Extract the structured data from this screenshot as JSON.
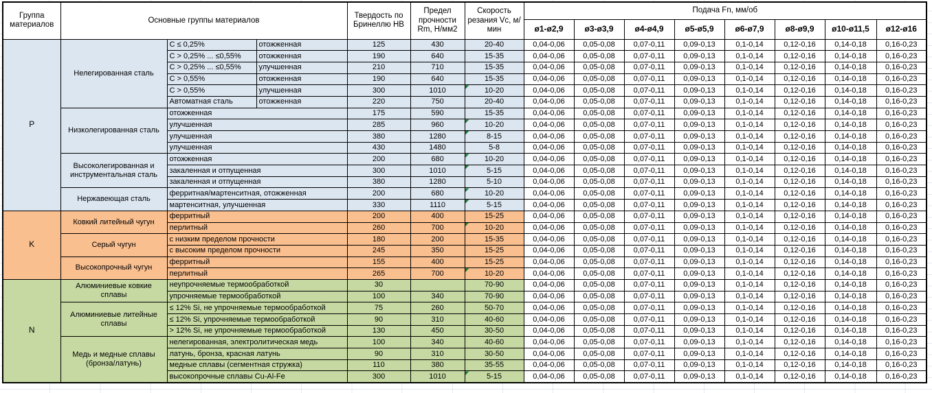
{
  "colors": {
    "steel_blue": "#DCE6F1",
    "cast_iron_orange": "#FABF8F",
    "nonferrous_green": "#C6D9A2",
    "border_black": "#000000",
    "flag_green": "#1E7B34",
    "header_white": "#FFFFFF"
  },
  "header": {
    "col_group": "Группа материалов",
    "col_main": "Основные группы материалов",
    "col_hb": "Твердость по Бринеллю HB",
    "col_rm": "Предел прочности Rm, Н/мм2",
    "col_vc": "Скорость резания Vc, м/мин",
    "col_feed": "Подача Fn, мм/об",
    "diameters": [
      "ø1-ø2,9",
      "ø3-ø3,9",
      "ø4-ø4,9",
      "ø5-ø5,9",
      "ø6-ø7,9",
      "ø8-ø9,9",
      "ø10-ø11,5",
      "ø12-ø16"
    ]
  },
  "feed_values": [
    "0,04-0,06",
    "0,05-0,08",
    "0,07-0,11",
    "0,09-0,13",
    "0,1-0,14",
    "0,12-0,16",
    "0,14-0,18",
    "0,16-0,23"
  ],
  "groups": [
    {
      "code": "P",
      "color": "#DCE6F1",
      "families": [
        {
          "name": "Нелегированная сталь",
          "rows": [
            {
              "desc1": "C ≤ 0,25%",
              "desc2": "отожженная",
              "hb": "125",
              "rm": "430",
              "vc": "20-40",
              "flag": false
            },
            {
              "desc1": "C > 0,25% ... ≤0,55%",
              "desc2": "отожженная",
              "hb": "190",
              "rm": "640",
              "vc": "15-35",
              "flag": false
            },
            {
              "desc1": "C > 0,25% ... ≤0,55%",
              "desc2": "улучшенная",
              "hb": "210",
              "rm": "710",
              "vc": "15-35",
              "flag": false
            },
            {
              "desc1": "C > 0,55%",
              "desc2": "отожженная",
              "hb": "190",
              "rm": "640",
              "vc": "15-35",
              "flag": false
            },
            {
              "desc1": "C > 0,55%",
              "desc2": "улучшенная",
              "hb": "300",
              "rm": "1010",
              "vc": "10-20",
              "flag": true
            },
            {
              "desc1": "Автоматная сталь",
              "desc2": "отожженная",
              "hb": "220",
              "rm": "750",
              "vc": "20-40",
              "flag": false
            }
          ]
        },
        {
          "name": "Низколегированная сталь",
          "rows": [
            {
              "desc1": "отожженная",
              "desc2": null,
              "hb": "175",
              "rm": "590",
              "vc": "15-35",
              "flag": false
            },
            {
              "desc1": "улучшенная",
              "desc2": null,
              "hb": "285",
              "rm": "960",
              "vc": "10-20",
              "flag": true
            },
            {
              "desc1": "улучшенная",
              "desc2": null,
              "hb": "380",
              "rm": "1280",
              "vc": "8-15",
              "flag": true
            },
            {
              "desc1": "улучшенная",
              "desc2": null,
              "hb": "430",
              "rm": "1480",
              "vc": "5-8",
              "flag": false
            }
          ]
        },
        {
          "name": "Высоколегированная и инструментальная сталь",
          "rows": [
            {
              "desc1": "отожженная",
              "desc2": null,
              "hb": "200",
              "rm": "680",
              "vc": "10-20",
              "flag": true
            },
            {
              "desc1": "закаленная и отпущенная",
              "desc2": null,
              "hb": "300",
              "rm": "1010",
              "vc": "5-15",
              "flag": true
            },
            {
              "desc1": "закаленная и отпущенная",
              "desc2": null,
              "hb": "380",
              "rm": "1280",
              "vc": "5-10",
              "flag": false
            }
          ]
        },
        {
          "name": "Нержавеющая сталь",
          "rows": [
            {
              "desc1": "ферритная/мартенситная, отожженная",
              "desc2": null,
              "hb": "200",
              "rm": "680",
              "vc": "10-20",
              "flag": true
            },
            {
              "desc1": "мартенситная, улучшенная",
              "desc2": null,
              "hb": "330",
              "rm": "1110",
              "vc": "5-15",
              "flag": true
            }
          ]
        }
      ]
    },
    {
      "code": "K",
      "color": "#FABF8F",
      "families": [
        {
          "name": "Ковкий литейный чугун",
          "rows": [
            {
              "desc1": "ферритный",
              "desc2": null,
              "hb": "200",
              "rm": "400",
              "vc": "15-25",
              "flag": false
            },
            {
              "desc1": "перлитный",
              "desc2": null,
              "hb": "260",
              "rm": "700",
              "vc": "10-20",
              "flag": true
            }
          ]
        },
        {
          "name": "Серый чугун",
          "rows": [
            {
              "desc1": "с низким пределом прочности",
              "desc2": null,
              "hb": "180",
              "rm": "200",
              "vc": "15-35",
              "flag": false
            },
            {
              "desc1": "с высоким пределом прочности",
              "desc2": null,
              "hb": "245",
              "rm": "350",
              "vc": "15-25",
              "flag": false
            }
          ]
        },
        {
          "name": "Высокопрочный чугун",
          "rows": [
            {
              "desc1": "ферритный",
              "desc2": null,
              "hb": "155",
              "rm": "400",
              "vc": "15-25",
              "flag": false
            },
            {
              "desc1": "перлитный",
              "desc2": null,
              "hb": "265",
              "rm": "700",
              "vc": "10-20",
              "flag": true
            }
          ]
        }
      ]
    },
    {
      "code": "N",
      "color": "#C6D9A2",
      "families": [
        {
          "name": "Алюминиевые ковкие сплавы",
          "rows": [
            {
              "desc1": "неупрочняемые термообработкой",
              "desc2": null,
              "hb": "30",
              "rm": "",
              "vc": "70-90",
              "flag": false
            },
            {
              "desc1": "упрочняемые термообработкой",
              "desc2": null,
              "hb": "100",
              "rm": "340",
              "vc": "70-90",
              "flag": false
            }
          ]
        },
        {
          "name": "Алюминиевые литейные сплавы",
          "rows": [
            {
              "desc1": "≤ 12% Si, не упрочняемые термообработкой",
              "desc2": null,
              "hb": "75",
              "rm": "260",
              "vc": "50-70",
              "flag": false
            },
            {
              "desc1": "≤ 12% Si, упрочняемые термообработкой",
              "desc2": null,
              "hb": "90",
              "rm": "310",
              "vc": "40-60",
              "flag": false
            },
            {
              "desc1": "> 12% Si, не упрочняемые термообработкой",
              "desc2": null,
              "hb": "130",
              "rm": "450",
              "vc": "30-50",
              "flag": false
            }
          ]
        },
        {
          "name": "Медь и медные сплавы (бронза/латунь)",
          "rows": [
            {
              "desc1": "нелегированная, электролитическая медь",
              "desc2": null,
              "hb": "100",
              "rm": "340",
              "vc": "40-60",
              "flag": false
            },
            {
              "desc1": "латунь, бронза, красная латунь",
              "desc2": null,
              "hb": "90",
              "rm": "310",
              "vc": "30-50",
              "flag": false
            },
            {
              "desc1": "медные сплавы (сегментная стружка)",
              "desc2": null,
              "hb": "110",
              "rm": "380",
              "vc": "35-55",
              "flag": false
            },
            {
              "desc1": "высокопрочные сплавы Cu-Al-Fe",
              "desc2": null,
              "hb": "300",
              "rm": "1010",
              "vc": "5-15",
              "flag": true
            }
          ]
        }
      ]
    }
  ]
}
